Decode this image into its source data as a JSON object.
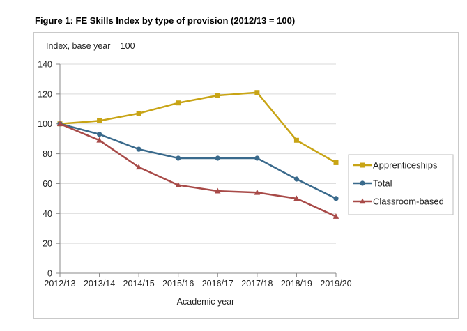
{
  "figure_title": "Figure 1: FE Skills Index by type of provision (2012/13 = 100)",
  "chart_data": {
    "type": "line",
    "title": "Figure 1: FE Skills Index by type of provision (2012/13 = 100)",
    "ylabel": "Index, base year = 100",
    "xlabel": "Academic year",
    "categories": [
      "2012/13",
      "2013/14",
      "2014/15",
      "2015/16",
      "2016/17",
      "2017/18",
      "2018/19",
      "2019/20"
    ],
    "ylim": [
      0,
      140
    ],
    "yticks": [
      0,
      20,
      40,
      60,
      80,
      100,
      120,
      140
    ],
    "grid": "horizontal",
    "legend_position": "right",
    "series": [
      {
        "name": "Apprenticeships",
        "color": "#c8a415",
        "marker": "square",
        "values": [
          100,
          102,
          107,
          114,
          119,
          121,
          89,
          74
        ]
      },
      {
        "name": "Total",
        "color": "#3a6a8c",
        "marker": "circle",
        "values": [
          100,
          93,
          83,
          77,
          77,
          77,
          63,
          50
        ]
      },
      {
        "name": "Classroom-based",
        "color": "#a84a48",
        "marker": "triangle",
        "values": [
          100,
          89,
          71,
          59,
          55,
          54,
          50,
          38
        ]
      }
    ]
  }
}
